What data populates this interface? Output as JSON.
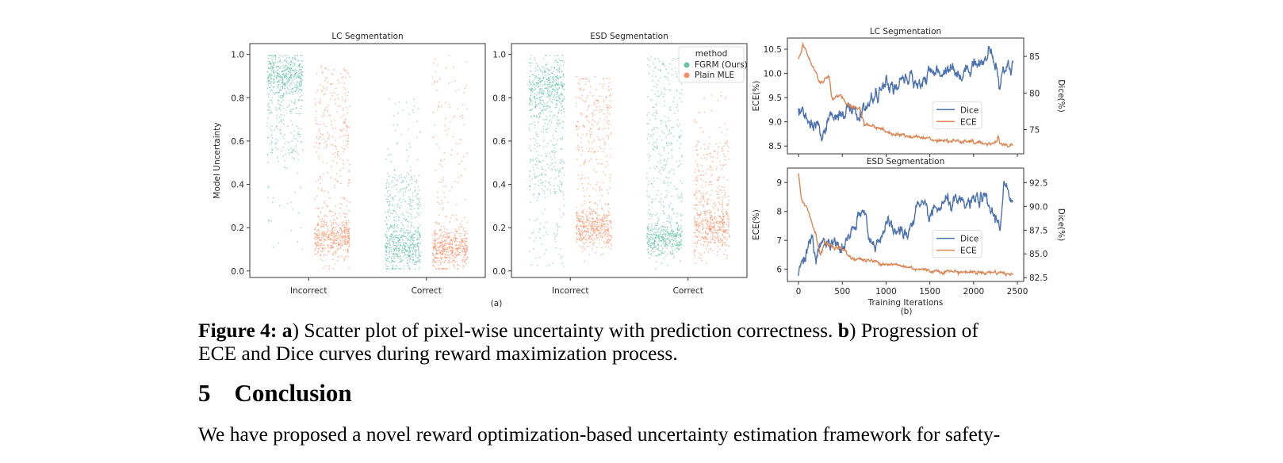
{
  "figure": {
    "panel_a_label": "(a)",
    "panel_b_label": "(b)"
  },
  "colors": {
    "fgrm": "#66c2a5",
    "mle": "#fc8d62",
    "dice": "#4c72b0",
    "ece": "#dd8452"
  },
  "chart_data": [
    {
      "type": "scatter",
      "title": "LC Segmentation",
      "ylabel": "Model Uncertainty",
      "xlabel": "",
      "categories": [
        "Incorrect",
        "Correct"
      ],
      "yticks": [
        "0.0",
        "0.2",
        "0.4",
        "0.6",
        "0.8",
        "1.0"
      ],
      "ylim": [
        -0.03,
        1.05
      ],
      "series": [
        {
          "category": "Incorrect",
          "method": "FGRM (Ours)",
          "components": [
            {
              "dist": "normal",
              "center": 0.91,
              "sd": 0.05,
              "n": 450
            },
            {
              "dist": "uniform",
              "range": [
                0.5,
                0.85
              ],
              "n": 180
            },
            {
              "dist": "uniform",
              "range": [
                0.08,
                0.5
              ],
              "n": 25
            }
          ]
        },
        {
          "category": "Incorrect",
          "method": "Plain MLE",
          "components": [
            {
              "dist": "normal",
              "center": 0.16,
              "sd": 0.05,
              "n": 420
            },
            {
              "dist": "uniform",
              "range": [
                0.55,
                0.95
              ],
              "n": 170
            },
            {
              "dist": "uniform",
              "range": [
                0.25,
                0.55
              ],
              "n": 80
            }
          ]
        },
        {
          "category": "Correct",
          "method": "FGRM (Ours)",
          "components": [
            {
              "dist": "normal",
              "center": 0.1,
              "sd": 0.05,
              "n": 420
            },
            {
              "dist": "uniform",
              "range": [
                0.15,
                0.45
              ],
              "n": 230
            },
            {
              "dist": "uniform",
              "range": [
                0.45,
                0.8
              ],
              "n": 40
            }
          ]
        },
        {
          "category": "Correct",
          "method": "Plain MLE",
          "components": [
            {
              "dist": "normal",
              "center": 0.1,
              "sd": 0.05,
              "n": 450
            },
            {
              "dist": "uniform",
              "range": [
                0.2,
                1.0
              ],
              "n": 110
            }
          ]
        }
      ]
    },
    {
      "type": "scatter",
      "title": "ESD Segmentation",
      "ylabel": "",
      "xlabel": "",
      "categories": [
        "Incorrect",
        "Correct"
      ],
      "yticks": [
        "0.0",
        "0.2",
        "0.4",
        "0.6",
        "0.8",
        "1.0"
      ],
      "ylim": [
        -0.03,
        1.05
      ],
      "legend": {
        "title": "method",
        "entries": [
          "FGRM (Ours)",
          "Plain MLE"
        ],
        "placement": "top-right"
      },
      "series": [
        {
          "category": "Incorrect",
          "method": "FGRM (Ours)",
          "components": [
            {
              "dist": "normal",
              "center": 0.85,
              "sd": 0.07,
              "n": 450
            },
            {
              "dist": "uniform",
              "range": [
                0.35,
                0.72
              ],
              "n": 220
            },
            {
              "dist": "uniform",
              "range": [
                0.02,
                0.35
              ],
              "n": 60
            }
          ]
        },
        {
          "category": "Incorrect",
          "method": "Plain MLE",
          "components": [
            {
              "dist": "normal",
              "center": 0.2,
              "sd": 0.05,
              "n": 420
            },
            {
              "dist": "uniform",
              "range": [
                0.55,
                0.9
              ],
              "n": 180
            },
            {
              "dist": "uniform",
              "range": [
                0.3,
                0.55
              ],
              "n": 60
            }
          ]
        },
        {
          "category": "Correct",
          "method": "FGRM (Ours)",
          "components": [
            {
              "dist": "normal",
              "center": 0.15,
              "sd": 0.045,
              "n": 400
            },
            {
              "dist": "uniform",
              "range": [
                0.25,
                0.99
              ],
              "n": 300
            }
          ]
        },
        {
          "category": "Correct",
          "method": "Plain MLE",
          "components": [
            {
              "dist": "normal",
              "center": 0.2,
              "sd": 0.06,
              "n": 400
            },
            {
              "dist": "uniform",
              "range": [
                0.3,
                0.6
              ],
              "n": 160
            },
            {
              "dist": "uniform",
              "range": [
                0.6,
                0.85
              ],
              "n": 20
            }
          ]
        }
      ]
    },
    {
      "type": "line",
      "title": "LC Segmentation",
      "xlabel": "",
      "ylabel": "ECE(%)",
      "ylabel_right": "Dice(%)",
      "xlim": [
        -127,
        2572
      ],
      "ylim": [
        8.34,
        10.73
      ],
      "ylim_right": [
        71.7,
        87.5
      ],
      "xticks": [
        0,
        500,
        1000,
        1500,
        2000,
        2500
      ],
      "yticks": [
        "8.5",
        "9.0",
        "9.5",
        "10.0",
        "10.5"
      ],
      "yticks_right": [
        "75",
        "80",
        "85"
      ],
      "legend": {
        "entries": [
          "Dice",
          "ECE"
        ],
        "placement": "center-right"
      },
      "series": [
        {
          "name": "Dice",
          "axis": "right",
          "x": [
            0,
            100,
            250,
            400,
            500,
            600,
            700,
            800,
            900,
            1000,
            1100,
            1250,
            1400,
            1500,
            1650,
            1750,
            1850,
            2000,
            2100,
            2200,
            2250,
            2300,
            2350,
            2450
          ],
          "y": [
            77.5,
            76,
            74.5,
            77,
            77.5,
            77.5,
            77,
            78.5,
            80,
            81,
            80.5,
            82,
            81.5,
            82.5,
            83,
            84,
            82,
            84.5,
            84,
            85.5,
            84,
            80.5,
            83.5,
            84
          ]
        },
        {
          "name": "ECE",
          "axis": "left",
          "x": [
            0,
            50,
            150,
            250,
            350,
            380,
            500,
            600,
            700,
            750,
            900,
            1000,
            1100,
            1300,
            1500,
            1800,
            2000,
            2260,
            2280,
            2300,
            2450
          ],
          "y": [
            10.3,
            10.6,
            10.2,
            9.8,
            9.95,
            9.5,
            9.5,
            9.3,
            9.3,
            8.95,
            8.9,
            8.8,
            8.75,
            8.7,
            8.65,
            8.6,
            8.57,
            8.55,
            8.75,
            8.55,
            8.52
          ]
        }
      ]
    },
    {
      "type": "line",
      "title": "ESD Segmentation",
      "xlabel": "Training Iterations",
      "ylabel": "ECE(%)",
      "ylabel_right": "Dice(%)",
      "xlim": [
        -127,
        2572
      ],
      "ylim": [
        5.58,
        9.5
      ],
      "ylim_right": [
        82.1,
        94.03
      ],
      "xticks": [
        0,
        500,
        1000,
        1500,
        2000,
        2500
      ],
      "yticks": [
        "6",
        "7",
        "8",
        "9"
      ],
      "yticks_right": [
        "82.5",
        "85.0",
        "87.5",
        "90.0",
        "92.5"
      ],
      "legend": {
        "entries": [
          "Dice",
          "ECE"
        ],
        "placement": "center-right"
      },
      "series": [
        {
          "name": "Dice",
          "axis": "right",
          "x": [
            0,
            50,
            150,
            200,
            250,
            400,
            500,
            600,
            750,
            850,
            1000,
            1100,
            1250,
            1350,
            1500,
            1700,
            1900,
            2100,
            2200,
            2300,
            2350,
            2450
          ],
          "y": [
            83,
            84.5,
            86.5,
            84,
            86.5,
            86,
            85.5,
            87,
            89.5,
            85.5,
            88,
            87.5,
            87,
            90,
            89,
            90.5,
            90,
            91,
            89.5,
            88,
            92.5,
            89.5
          ]
        },
        {
          "name": "ECE",
          "axis": "left",
          "x": [
            0,
            30,
            100,
            200,
            250,
            300,
            500,
            600,
            800,
            1000,
            1300,
            1500,
            1800,
            2000,
            2300,
            2450
          ],
          "y": [
            9.3,
            8.5,
            8.1,
            7.2,
            6.5,
            6.9,
            6.7,
            6.4,
            6.3,
            6.2,
            6.05,
            5.95,
            5.92,
            5.9,
            5.9,
            5.8
          ]
        }
      ]
    }
  ],
  "caption": {
    "label": "Figure 4:",
    "a_bold": "a",
    "a_text": ") Scatter plot of pixel-wise uncertainty with prediction correctness. ",
    "b_bold": "b",
    "b_text": ") Progression of",
    "line2": "ECE and Dice curves during reward maximization process."
  },
  "section": {
    "number": "5",
    "title": "Conclusion"
  },
  "paragraph": {
    "line1": "We have proposed a novel reward optimization-based uncertainty estimation framework for safety-"
  }
}
